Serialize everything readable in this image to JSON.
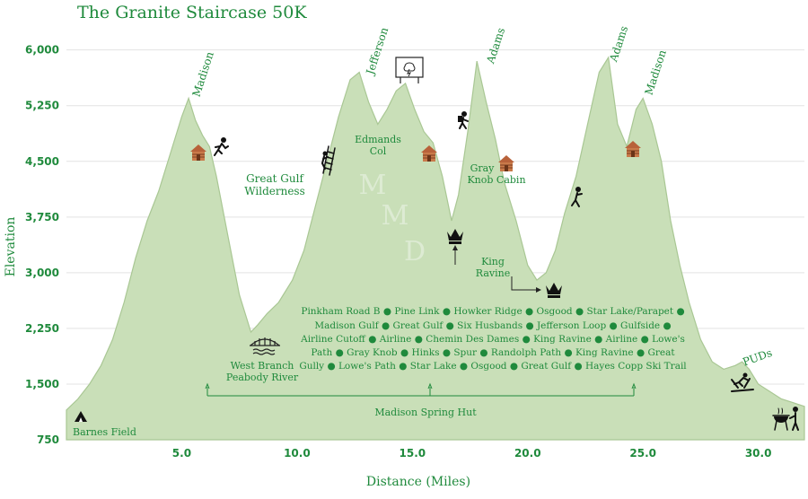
{
  "chart_data": {
    "type": "area",
    "title": "The Granite Staircase 50K",
    "xlabel": "Distance (Miles)",
    "ylabel": "Elevation",
    "xlim": [
      0.0,
      32.0
    ],
    "ylim": [
      750,
      6250
    ],
    "xticks": [
      5,
      10,
      15,
      20,
      25,
      30
    ],
    "xtick_labels": [
      "5.0",
      "10.0",
      "15.0",
      "20.0",
      "25.0",
      "30.0"
    ],
    "yticks": [
      750,
      1500,
      2250,
      3000,
      3750,
      4500,
      5250,
      6000
    ],
    "ytick_labels": [
      "750",
      "1,500",
      "2,250",
      "3,000",
      "3,750",
      "4,500",
      "5,250",
      "6,000"
    ],
    "grid": true,
    "fill_color": "#c9dfb8",
    "line_color": "#a9c794",
    "text_color": "#1f8a3c",
    "series": [
      {
        "name": "",
        "x": [
          0,
          0.5,
          1.0,
          1.5,
          2.0,
          2.5,
          3.0,
          3.5,
          4.0,
          4.5,
          5.0,
          5.3,
          5.6,
          5.9,
          6.2,
          6.5,
          7.0,
          7.5,
          8.0,
          8.3,
          8.7,
          9.2,
          9.8,
          10.3,
          10.8,
          11.3,
          11.8,
          12.3,
          12.7,
          13.1,
          13.5,
          13.9,
          14.3,
          14.7,
          15.1,
          15.5,
          15.9,
          16.3,
          16.7,
          17.0,
          17.4,
          17.8,
          18.2,
          18.6,
          19.0,
          19.5,
          20.0,
          20.4,
          20.8,
          21.2,
          21.6,
          22.1,
          22.6,
          23.1,
          23.5,
          23.9,
          24.3,
          24.7,
          25.0,
          25.4,
          25.8,
          26.2,
          26.6,
          27.0,
          27.5,
          28.0,
          28.5,
          29.0,
          29.3,
          29.6,
          30.0,
          30.5,
          31.0,
          31.5,
          32.0
        ],
        "y": [
          1150,
          1300,
          1500,
          1750,
          2100,
          2600,
          3200,
          3700,
          4100,
          4600,
          5100,
          5350,
          5050,
          4850,
          4700,
          4300,
          3500,
          2700,
          2200,
          2300,
          2450,
          2600,
          2900,
          3300,
          3900,
          4500,
          5100,
          5600,
          5700,
          5300,
          5000,
          5200,
          5450,
          5550,
          5200,
          4900,
          4750,
          4300,
          3700,
          4050,
          4900,
          5850,
          5300,
          4800,
          4200,
          3700,
          3100,
          2900,
          3000,
          3300,
          3800,
          4300,
          5000,
          5700,
          5900,
          5000,
          4700,
          5200,
          5350,
          5000,
          4500,
          3700,
          3100,
          2600,
          2100,
          1800,
          1700,
          1750,
          1800,
          1700,
          1500,
          1400,
          1300,
          1250,
          1200
        ]
      }
    ],
    "annotations": {
      "peaks": [
        {
          "label": "Madison",
          "x": 5.6
        },
        {
          "label": "Jefferson",
          "x": 12.7
        },
        {
          "label": "Adams",
          "x": 17.8
        },
        {
          "label": "Adams",
          "x": 23.5
        },
        {
          "label": "Madison",
          "x": 25.0
        }
      ],
      "great_gulf": [
        "Great Gulf",
        "Wilderness"
      ],
      "edmands_col": [
        "Edmands",
        "Col"
      ],
      "gray_knob": [
        "Gray",
        "Knob Cabin"
      ],
      "king_ravine": [
        "King",
        "Ravine"
      ],
      "west_branch": [
        "West Branch",
        "Peabody River"
      ],
      "madison_spring_hut": "Madison Spring Hut",
      "barnes_field": "Barnes Field",
      "puds": "PUDs",
      "watermark": [
        "M",
        "M",
        "D"
      ],
      "trail_lines": [
        "Pinkham Road B ● Pine Link ● Howker Ridge ● Osgood ● Star Lake/Parapet ●",
        "Madison Gulf ● Great Gulf ● Six Husbands ● Jefferson Loop ● Gulfside ●",
        "Airline Cutoff ● Airline ● Chemin Des Dames ● King Ravine ● Airline ● Lowe's",
        "Path ● Gray Knob ● Hinks ● Spur ● Randolph Path ● King Ravine ● Great",
        "Gully ● Lowe's Path ● Star Lake ● Osgood ● Great Gulf ● Hayes Copp Ski Trail"
      ]
    },
    "icons": [
      "cabin-icon",
      "runner-icon",
      "ladder-climber-icon",
      "weather-sign-icon",
      "hiker-icon",
      "crown-icon",
      "bridge-icon",
      "skier-icon",
      "tent-icon",
      "grill-icon"
    ]
  }
}
